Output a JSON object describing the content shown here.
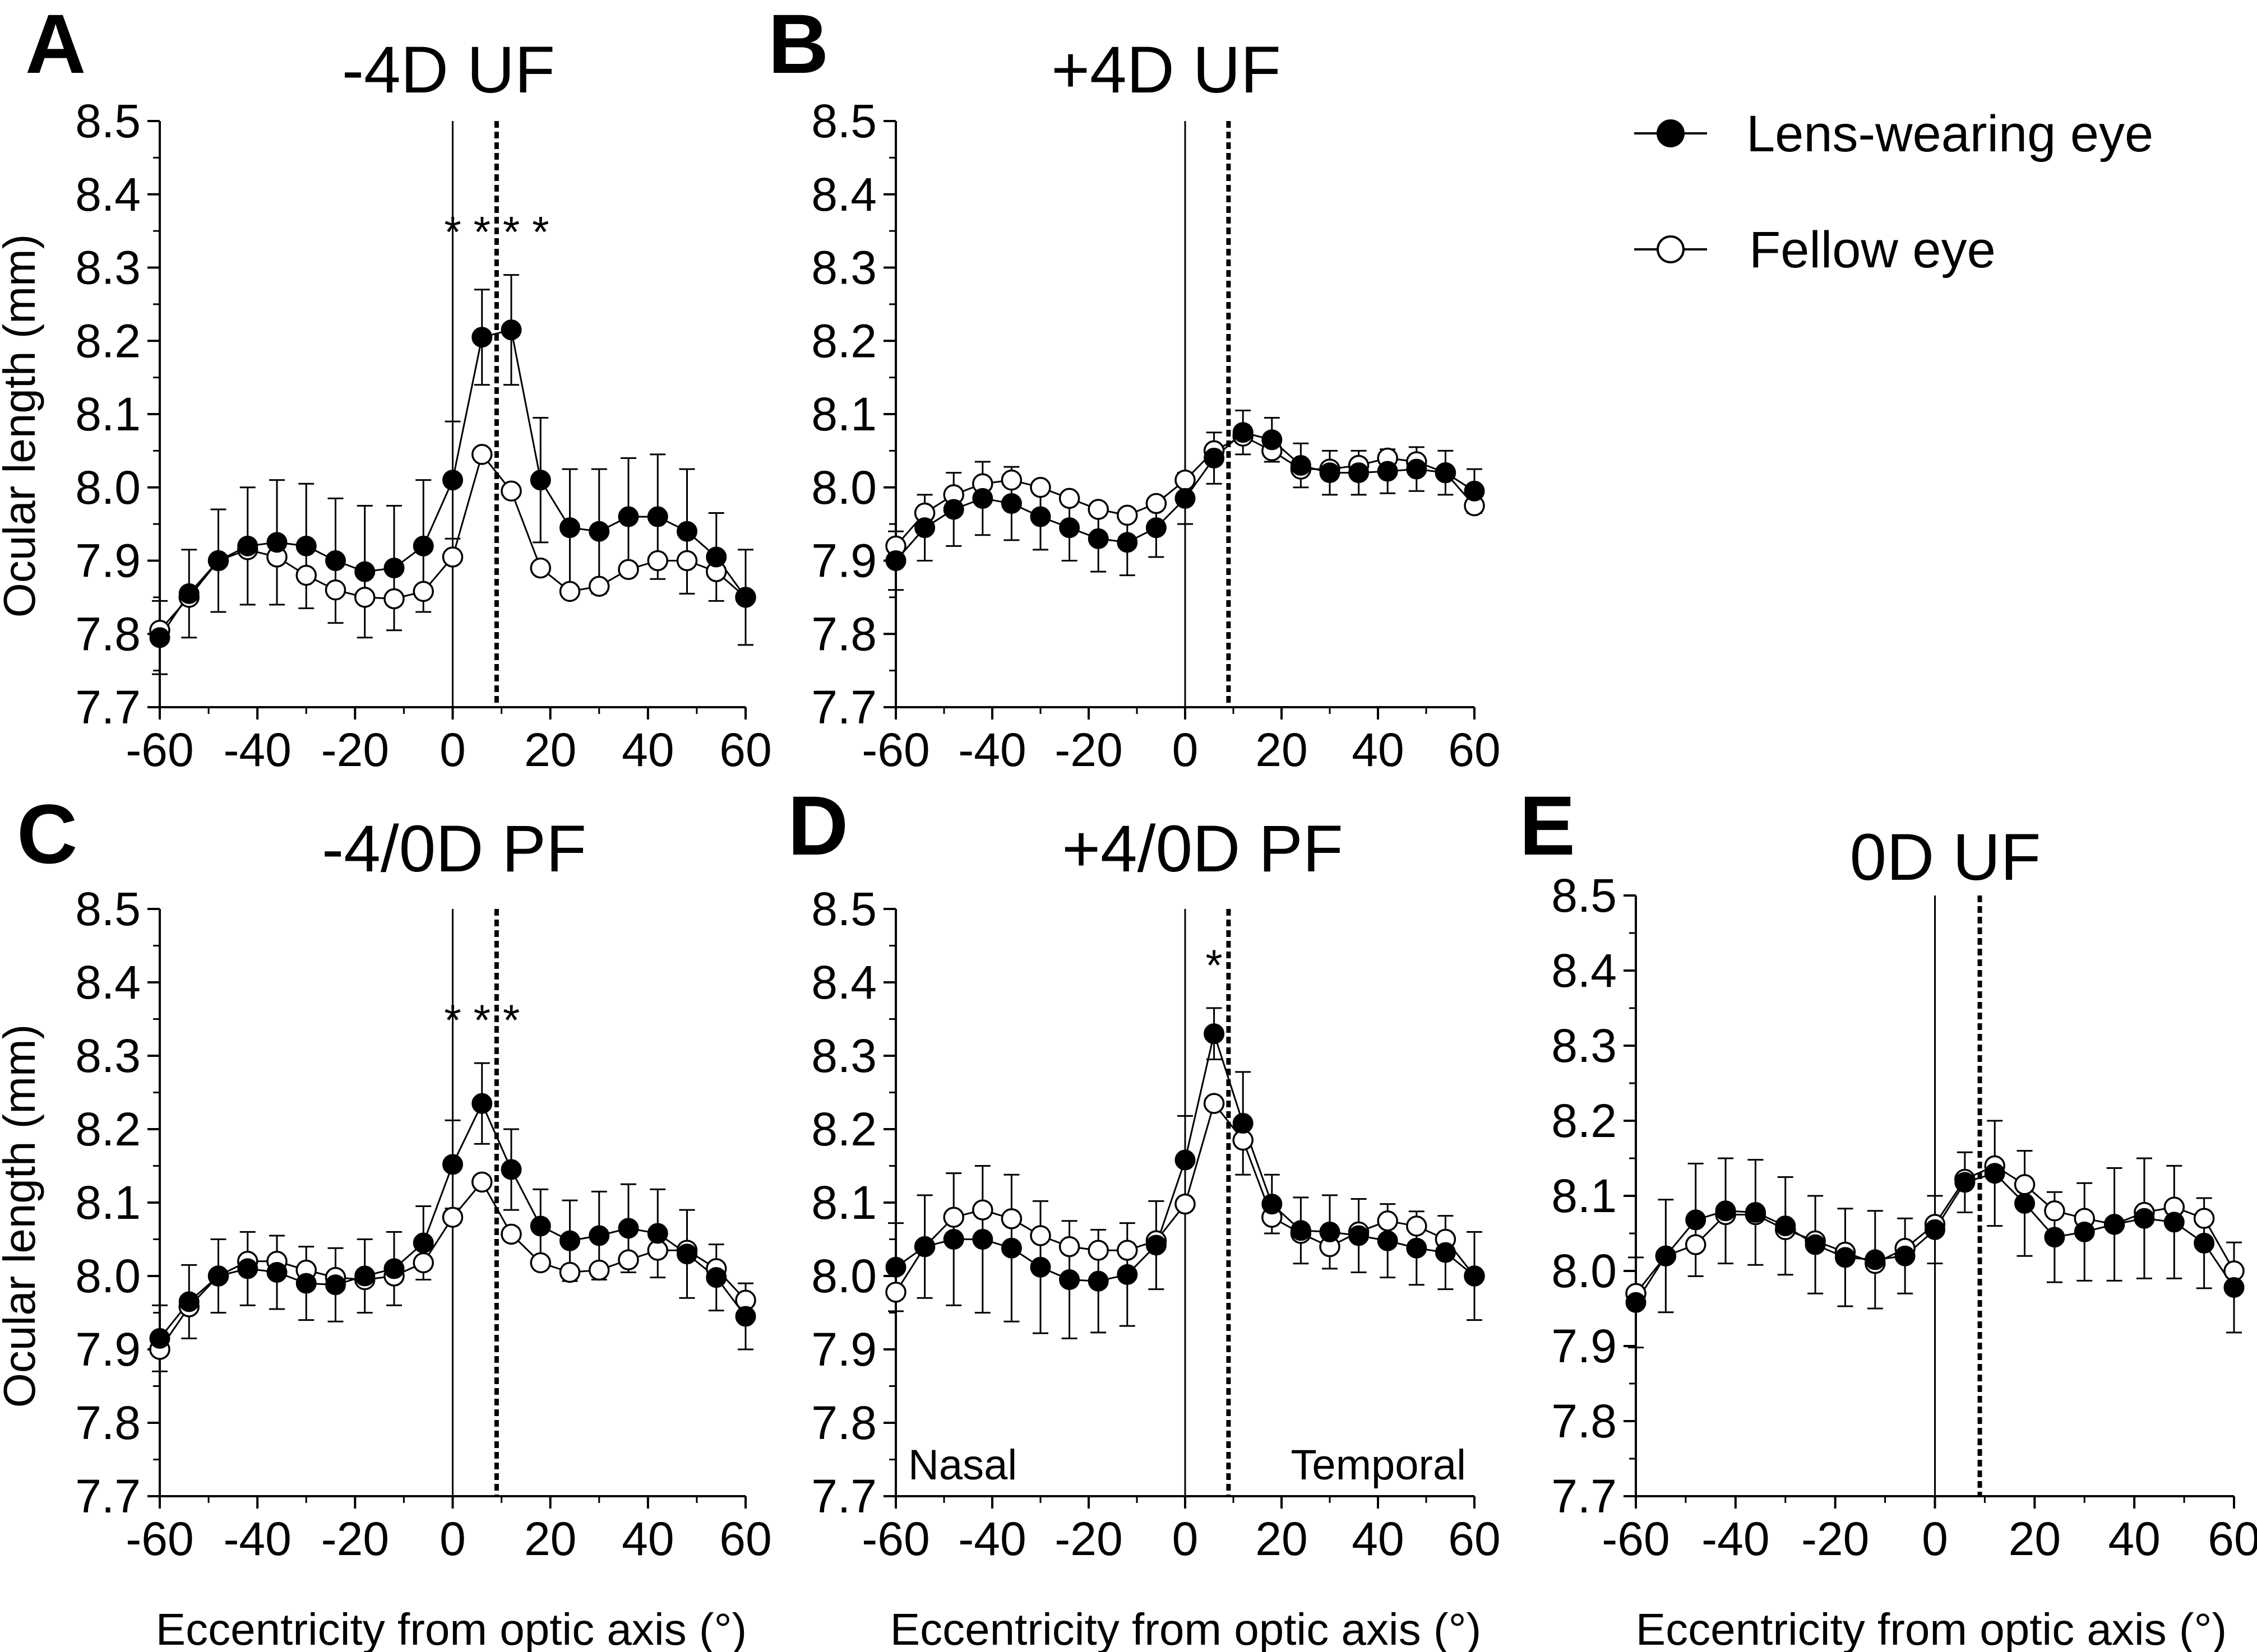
{
  "legend": {
    "items": [
      {
        "label": "Lens-wearing eye",
        "marker": "filled-circle"
      },
      {
        "label": "Fellow eye",
        "marker": "open-circle"
      }
    ]
  },
  "chart_data": [
    {
      "type": "line",
      "letter": "A",
      "title": "-4D UF",
      "ylabel": "Ocular length (mm)",
      "xlabel": "",
      "xlim": [
        -60,
        60
      ],
      "ylim": [
        7.7,
        8.5
      ],
      "xticks": [
        -60,
        -40,
        -20,
        0,
        20,
        40,
        60
      ],
      "yticks": [
        7.7,
        7.8,
        7.9,
        8.0,
        8.1,
        8.2,
        8.3,
        8.4,
        8.5
      ],
      "optic_axis_x": 0,
      "dotted_line_x": 9,
      "significance": [
        {
          "x": 6,
          "label": "*"
        },
        {
          "x": 0,
          "label": "*"
        },
        {
          "x": 12,
          "label": "*"
        },
        {
          "x": 18,
          "label": "*"
        }
      ],
      "annotations": [],
      "x": [
        -60,
        -54,
        -48,
        -42,
        -36,
        -30,
        -24,
        -18,
        -12,
        -6,
        0,
        6,
        12,
        18,
        24,
        30,
        36,
        42,
        48,
        54,
        60
      ],
      "series": [
        {
          "name": "Lens-wearing eye",
          "values": [
            7.795,
            7.855,
            7.9,
            7.92,
            7.925,
            7.92,
            7.9,
            7.885,
            7.89,
            7.92,
            8.01,
            8.205,
            8.215,
            8.01,
            7.945,
            7.94,
            7.96,
            7.96,
            7.94,
            7.905,
            7.85
          ],
          "errors": [
            0.05,
            0.06,
            0.07,
            0.08,
            0.085,
            0.085,
            0.085,
            0.09,
            0.085,
            0.09,
            0.08,
            0.065,
            0.075,
            0.085,
            0.08,
            0.085,
            0.08,
            0.085,
            0.085,
            0.06,
            0.065
          ]
        },
        {
          "name": "Fellow eye",
          "values": [
            7.805,
            7.85,
            7.9,
            7.915,
            7.905,
            7.88,
            7.86,
            7.85,
            7.848,
            7.858,
            7.905,
            8.045,
            7.995,
            7.89,
            7.858,
            7.865,
            7.888,
            7.9,
            7.9,
            7.885,
            7.85
          ]
        }
      ]
    },
    {
      "type": "line",
      "letter": "B",
      "title": "+4D UF",
      "ylabel": "",
      "xlabel": "",
      "xlim": [
        -60,
        60
      ],
      "ylim": [
        7.7,
        8.5
      ],
      "xticks": [
        -60,
        -40,
        -20,
        0,
        20,
        40,
        60
      ],
      "yticks": [
        7.7,
        7.8,
        7.9,
        8.0,
        8.1,
        8.2,
        8.3,
        8.4,
        8.5
      ],
      "optic_axis_x": 0,
      "dotted_line_x": 9,
      "significance": [],
      "annotations": [],
      "x": [
        -60,
        -54,
        -48,
        -42,
        -36,
        -30,
        -24,
        -18,
        -12,
        -6,
        0,
        6,
        12,
        18,
        24,
        30,
        36,
        42,
        48,
        54,
        60
      ],
      "series": [
        {
          "name": "Lens-wearing eye",
          "values": [
            7.9,
            7.945,
            7.97,
            7.985,
            7.978,
            7.96,
            7.945,
            7.93,
            7.925,
            7.945,
            7.985,
            8.04,
            8.075,
            8.065,
            8.03,
            8.02,
            8.02,
            8.022,
            8.025,
            8.02,
            7.995
          ],
          "errors": [
            0.04,
            0.045,
            0.05,
            0.05,
            0.05,
            0.045,
            0.045,
            0.045,
            0.045,
            0.04,
            0.035,
            0.035,
            0.03,
            0.03,
            0.03,
            0.03,
            0.03,
            0.03,
            0.03,
            0.03,
            0.03
          ]
        },
        {
          "name": "Fellow eye",
          "values": [
            7.92,
            7.965,
            7.99,
            8.005,
            8.01,
            8.0,
            7.985,
            7.97,
            7.962,
            7.978,
            8.01,
            8.05,
            8.07,
            8.05,
            8.025,
            8.025,
            8.03,
            8.04,
            8.035,
            8.02,
            7.975
          ]
        }
      ]
    },
    {
      "type": "line",
      "letter": "C",
      "title": "-4/0D PF",
      "ylabel": "Ocular length (mm)",
      "xlabel": "Eccentricity from optic axis (°)",
      "xlim": [
        -60,
        60
      ],
      "ylim": [
        7.7,
        8.5
      ],
      "xticks": [
        -60,
        -40,
        -20,
        0,
        20,
        40,
        60
      ],
      "yticks": [
        7.7,
        7.8,
        7.9,
        8.0,
        8.1,
        8.2,
        8.3,
        8.4,
        8.5
      ],
      "optic_axis_x": 0,
      "dotted_line_x": 9,
      "significance": [
        {
          "x": 0,
          "label": "*"
        },
        {
          "x": 6,
          "label": "*"
        },
        {
          "x": 12,
          "label": "*"
        }
      ],
      "annotations": [],
      "x": [
        -60,
        -54,
        -48,
        -42,
        -36,
        -30,
        -24,
        -18,
        -12,
        -6,
        0,
        6,
        12,
        18,
        24,
        30,
        36,
        42,
        48,
        54,
        60
      ],
      "series": [
        {
          "name": "Lens-wearing eye",
          "values": [
            7.915,
            7.965,
            8.0,
            8.01,
            8.005,
            7.99,
            7.988,
            8.0,
            8.01,
            8.045,
            8.152,
            8.235,
            8.145,
            8.068,
            8.048,
            8.055,
            8.065,
            8.058,
            8.03,
            7.998,
            7.945
          ],
          "errors": [
            0.045,
            0.05,
            0.05,
            0.05,
            0.05,
            0.05,
            0.05,
            0.05,
            0.05,
            0.05,
            0.06,
            0.055,
            0.055,
            0.05,
            0.055,
            0.06,
            0.06,
            0.06,
            0.06,
            0.045,
            0.045
          ]
        },
        {
          "name": "Fellow eye",
          "values": [
            7.9,
            7.958,
            8.0,
            8.02,
            8.02,
            8.008,
            7.998,
            7.995,
            8.0,
            8.018,
            8.08,
            8.128,
            8.057,
            8.018,
            8.005,
            8.008,
            8.022,
            8.035,
            8.035,
            8.01,
            7.967
          ]
        }
      ]
    },
    {
      "type": "line",
      "letter": "D",
      "title": "+4/0D PF",
      "ylabel": "",
      "xlabel": "Eccentricity from optic axis (°)",
      "xlim": [
        -60,
        60
      ],
      "ylim": [
        7.7,
        8.5
      ],
      "xticks": [
        -60,
        -40,
        -20,
        0,
        20,
        40,
        60
      ],
      "yticks": [
        7.7,
        7.8,
        7.9,
        8.0,
        8.1,
        8.2,
        8.3,
        8.4,
        8.5
      ],
      "optic_axis_x": 0,
      "dotted_line_x": 9,
      "significance": [
        {
          "x": 6,
          "label": "*"
        }
      ],
      "annotations": [
        {
          "text": "Nasal",
          "side": "left"
        },
        {
          "text": "Temporal",
          "side": "right"
        }
      ],
      "x": [
        -60,
        -54,
        -48,
        -42,
        -36,
        -30,
        -24,
        -18,
        -12,
        -6,
        0,
        6,
        12,
        18,
        24,
        30,
        36,
        42,
        48,
        54,
        60
      ],
      "series": [
        {
          "name": "Lens-wearing eye",
          "values": [
            8.012,
            8.04,
            8.05,
            8.05,
            8.038,
            8.012,
            7.995,
            7.993,
            8.002,
            8.042,
            8.158,
            8.33,
            8.208,
            8.098,
            8.062,
            8.06,
            8.055,
            8.048,
            8.038,
            8.032,
            8.0
          ],
          "errors": [
            0.06,
            0.07,
            0.09,
            0.1,
            0.1,
            0.09,
            0.08,
            0.07,
            0.07,
            0.06,
            0.06,
            0.035,
            0.07,
            0.04,
            0.045,
            0.05,
            0.05,
            0.05,
            0.05,
            0.05,
            0.06
          ]
        },
        {
          "name": "Fellow eye",
          "values": [
            7.978,
            8.04,
            8.08,
            8.09,
            8.078,
            8.055,
            8.04,
            8.035,
            8.035,
            8.048,
            8.098,
            8.235,
            8.185,
            8.08,
            8.058,
            8.04,
            8.06,
            8.075,
            8.068,
            8.05,
            8.0
          ]
        }
      ]
    },
    {
      "type": "line",
      "letter": "E",
      "title": "0D UF",
      "ylabel": "",
      "xlabel": "Eccentricity from optic axis (°)",
      "xlim": [
        -60,
        60
      ],
      "ylim": [
        7.7,
        8.5
      ],
      "xticks": [
        -60,
        -40,
        -20,
        0,
        20,
        40,
        60
      ],
      "yticks": [
        7.7,
        7.8,
        7.9,
        8.0,
        8.1,
        8.2,
        8.3,
        8.4,
        8.5
      ],
      "optic_axis_x": 0,
      "dotted_line_x": 9,
      "significance": [],
      "annotations": [],
      "x": [
        -60,
        -54,
        -48,
        -42,
        -36,
        -30,
        -24,
        -18,
        -12,
        -6,
        0,
        6,
        12,
        18,
        24,
        30,
        36,
        42,
        48,
        54,
        60
      ],
      "series": [
        {
          "name": "Lens-wearing eye",
          "values": [
            7.958,
            8.02,
            8.068,
            8.08,
            8.078,
            8.06,
            8.035,
            8.018,
            8.015,
            8.02,
            8.055,
            8.118,
            8.13,
            8.09,
            8.045,
            8.052,
            8.062,
            8.07,
            8.065,
            8.037,
            7.978
          ],
          "errors": [
            0.06,
            0.075,
            0.075,
            0.07,
            0.07,
            0.065,
            0.065,
            0.065,
            0.065,
            0.05,
            0.045,
            0.04,
            0.07,
            0.07,
            0.06,
            0.065,
            0.075,
            0.08,
            0.075,
            0.06,
            0.06
          ]
        },
        {
          "name": "Fellow eye",
          "values": [
            7.97,
            8.02,
            8.035,
            8.075,
            8.075,
            8.055,
            8.04,
            8.025,
            8.01,
            8.03,
            8.062,
            8.122,
            8.14,
            8.115,
            8.08,
            8.07,
            8.062,
            8.078,
            8.085,
            8.07,
            8.0
          ]
        }
      ]
    }
  ]
}
